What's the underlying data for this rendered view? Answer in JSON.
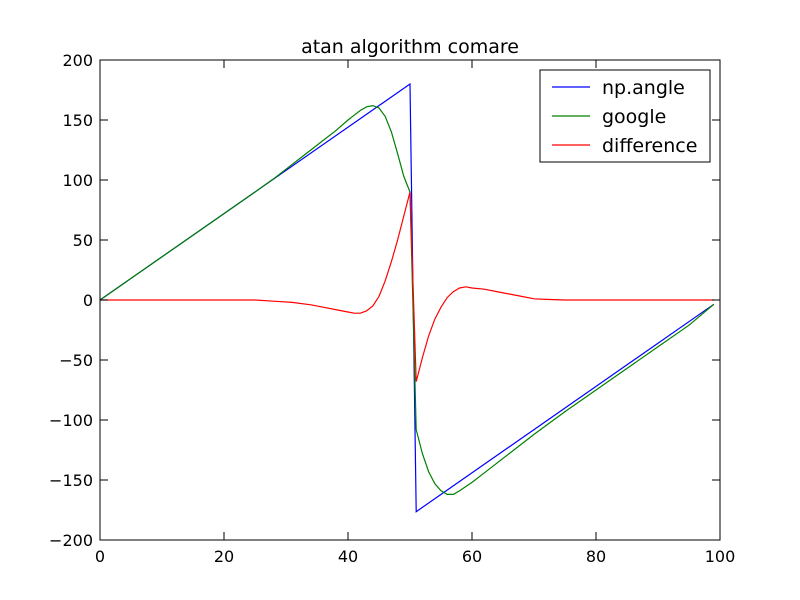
{
  "chart_data": {
    "type": "line",
    "title": "atan algorithm comare",
    "xlabel": "",
    "ylabel": "",
    "xlim": [
      0,
      100
    ],
    "ylim": [
      -200,
      200
    ],
    "xticks": [
      0,
      20,
      40,
      60,
      80,
      100
    ],
    "yticks": [
      200,
      150,
      100,
      50,
      0,
      -50,
      -100,
      -150,
      -200
    ],
    "ytick_labels": [
      "200",
      "150",
      "100",
      "50",
      "0",
      "−50",
      "−100",
      "−150",
      "−200"
    ],
    "grid": false,
    "legend_position": "top-right",
    "series": [
      {
        "name": "np.angle",
        "color": "#0000ff",
        "points": [
          [
            0,
            0
          ],
          [
            50,
            180
          ],
          [
            51,
            -176.4
          ],
          [
            99,
            -3.6
          ]
        ]
      },
      {
        "name": "google",
        "color": "#008000",
        "points": [
          [
            0,
            0
          ],
          [
            5,
            18
          ],
          [
            10,
            36
          ],
          [
            15,
            54
          ],
          [
            20,
            72
          ],
          [
            25,
            90
          ],
          [
            28,
            101
          ],
          [
            30,
            109
          ],
          [
            32,
            117
          ],
          [
            34,
            125
          ],
          [
            36,
            133
          ],
          [
            38,
            141
          ],
          [
            40,
            150
          ],
          [
            41,
            154
          ],
          [
            42,
            158
          ],
          [
            43,
            161
          ],
          [
            44,
            162
          ],
          [
            45,
            160
          ],
          [
            46,
            153
          ],
          [
            47,
            140
          ],
          [
            48,
            122
          ],
          [
            49,
            103
          ],
          [
            50,
            90
          ],
          [
            51,
            -108
          ],
          [
            52,
            -128
          ],
          [
            53,
            -143
          ],
          [
            54,
            -153
          ],
          [
            55,
            -159
          ],
          [
            56,
            -162
          ],
          [
            57,
            -162
          ],
          [
            58,
            -159
          ],
          [
            60,
            -152
          ],
          [
            62,
            -144
          ],
          [
            64,
            -136
          ],
          [
            66,
            -128
          ],
          [
            68,
            -120
          ],
          [
            70,
            -112
          ],
          [
            75,
            -93
          ],
          [
            80,
            -75
          ],
          [
            85,
            -57
          ],
          [
            90,
            -39
          ],
          [
            95,
            -21
          ],
          [
            99,
            -3.6
          ]
        ]
      },
      {
        "name": "difference",
        "color": "#ff0000",
        "points": [
          [
            0,
            0
          ],
          [
            10,
            0
          ],
          [
            20,
            0
          ],
          [
            25,
            0
          ],
          [
            28,
            -1
          ],
          [
            31,
            -2
          ],
          [
            34,
            -4
          ],
          [
            36,
            -6
          ],
          [
            38,
            -8
          ],
          [
            40,
            -10
          ],
          [
            41,
            -11
          ],
          [
            42,
            -11
          ],
          [
            43,
            -9
          ],
          [
            44,
            -5
          ],
          [
            45,
            3
          ],
          [
            46,
            16
          ],
          [
            47,
            32
          ],
          [
            48,
            50
          ],
          [
            49,
            70
          ],
          [
            50,
            90
          ],
          [
            51,
            -68
          ],
          [
            52,
            -48
          ],
          [
            53,
            -30
          ],
          [
            54,
            -16
          ],
          [
            55,
            -6
          ],
          [
            56,
            2
          ],
          [
            57,
            7
          ],
          [
            58,
            10
          ],
          [
            59,
            11
          ],
          [
            60,
            10
          ],
          [
            62,
            9
          ],
          [
            64,
            7
          ],
          [
            66,
            5
          ],
          [
            68,
            3
          ],
          [
            70,
            1
          ],
          [
            72,
            0.5
          ],
          [
            75,
            0
          ],
          [
            80,
            0
          ],
          [
            90,
            0
          ],
          [
            99,
            0
          ]
        ]
      }
    ]
  }
}
